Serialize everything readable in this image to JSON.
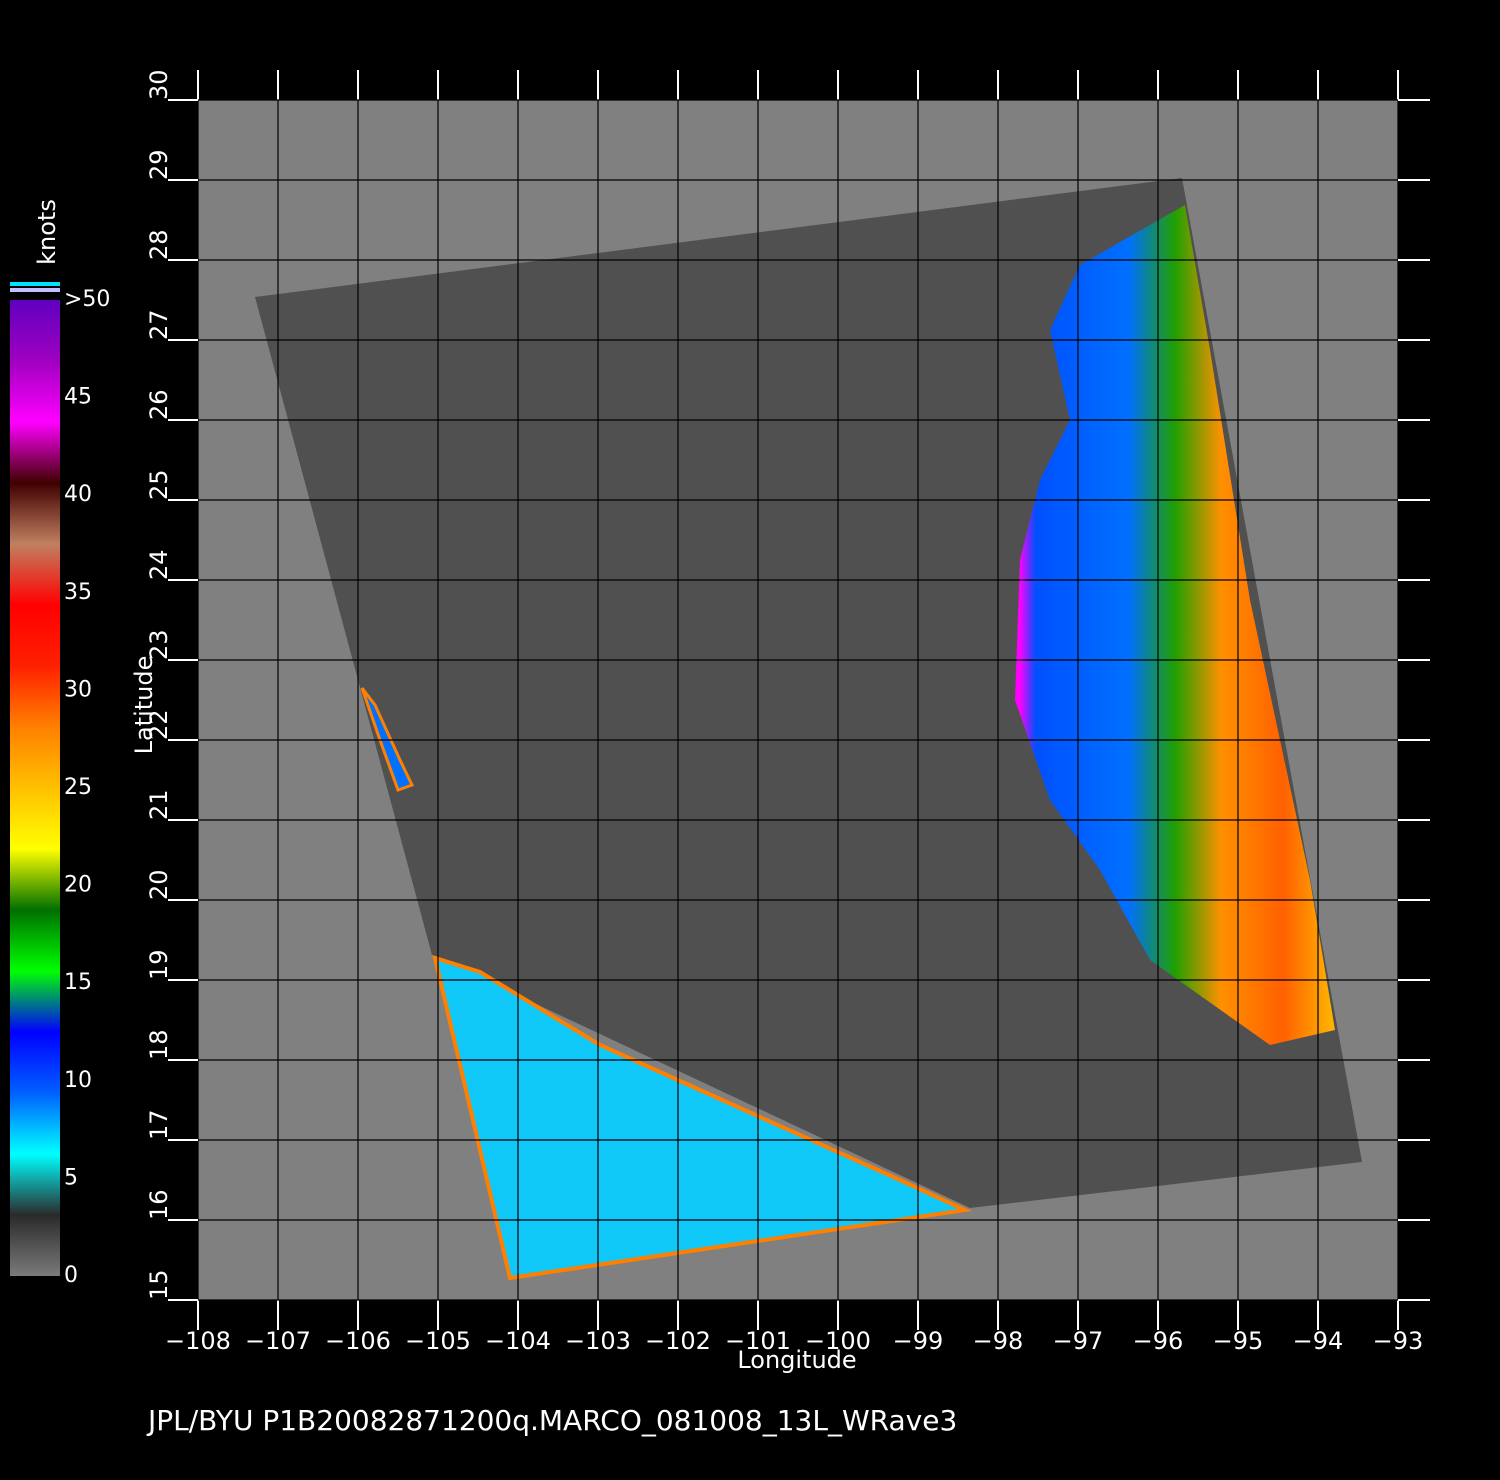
{
  "title": "JPL/BYU  P1B20082871200q.MARCO_081008_13L_WRave3",
  "x_axis": {
    "label": "Longitude",
    "lim": [
      -108,
      -93
    ],
    "ticks": [
      {
        "value": -108,
        "label": "−108"
      },
      {
        "value": -107,
        "label": "−107"
      },
      {
        "value": -106,
        "label": "−106"
      },
      {
        "value": -105,
        "label": "−105"
      },
      {
        "value": -104,
        "label": "−104"
      },
      {
        "value": -103,
        "label": "−103"
      },
      {
        "value": -102,
        "label": "−102"
      },
      {
        "value": -101,
        "label": "−101"
      },
      {
        "value": -100,
        "label": "−100"
      },
      {
        "value": -99,
        "label": "−99"
      },
      {
        "value": -98,
        "label": "−98"
      },
      {
        "value": -97,
        "label": "−97"
      },
      {
        "value": -96,
        "label": "−96"
      },
      {
        "value": -95,
        "label": "−95"
      },
      {
        "value": -94,
        "label": "−94"
      },
      {
        "value": -93,
        "label": "−93"
      }
    ]
  },
  "y_axis": {
    "label": "Latitude",
    "lim": [
      15,
      30
    ],
    "ticks": [
      15,
      16,
      17,
      18,
      19,
      20,
      21,
      22,
      23,
      24,
      25,
      26,
      27,
      28,
      29,
      30
    ]
  },
  "colorbar": {
    "unit": "knots",
    "lim": [
      0,
      50
    ],
    "ticks": [
      0,
      5,
      10,
      15,
      20,
      25,
      30,
      35,
      40,
      {
        "value": 45,
        "label": "45"
      },
      {
        "value": 50,
        "label": ">50"
      }
    ],
    "colors": [
      "#7a7a7a",
      "#2a2a2a",
      "#00ffff",
      "#0060ff",
      "#0000ff",
      "#00ff00",
      "#007000",
      "#ffff00",
      "#ffc000",
      "#ff8000",
      "#ff2000",
      "#ff0000",
      "#c08060",
      "#400000",
      "#ff00ff",
      "#a000c0",
      "#6000c0"
    ]
  }
}
